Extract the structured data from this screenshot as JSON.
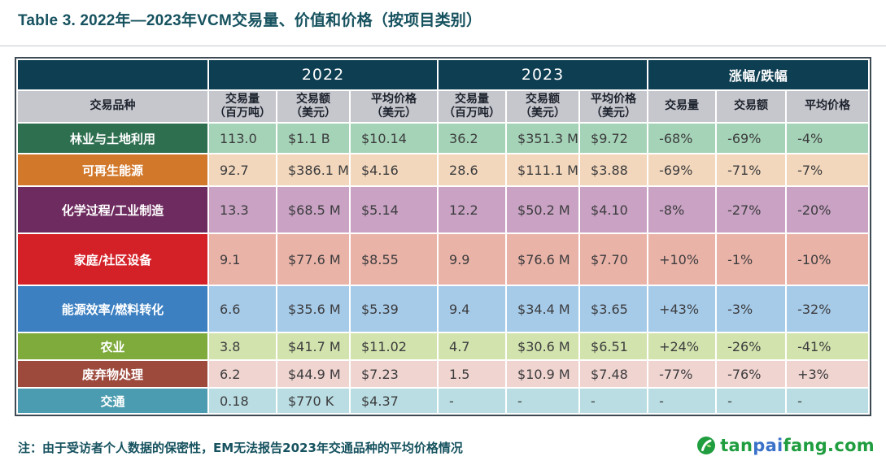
{
  "chart_data": {
    "type": "table",
    "title": "Table 3. 2022年—2023年VCM交易量、价值和价格（按项目类别）",
    "corner_label": "交易品种",
    "column_groups": [
      {
        "label": "2022"
      },
      {
        "label": "2023"
      },
      {
        "label": "涨幅/跌幅"
      }
    ],
    "columns": [
      {
        "key": "volume-2022",
        "label": "交易量",
        "unit": "（百万吨）"
      },
      {
        "key": "value-2022",
        "label": "交易额",
        "unit": "（美元）"
      },
      {
        "key": "price-2022",
        "label": "平均价格",
        "unit": "（美元）"
      },
      {
        "key": "volume-2023",
        "label": "交易量",
        "unit": "（百万吨）"
      },
      {
        "key": "value-2023",
        "label": "交易额",
        "unit": "（美元）"
      },
      {
        "key": "price-2023",
        "label": "平均价格",
        "unit": "（美元）"
      },
      {
        "key": "volume-change",
        "label": "交易量",
        "unit": ""
      },
      {
        "key": "value-change",
        "label": "交易额",
        "unit": ""
      },
      {
        "key": "price-change",
        "label": "平均价格",
        "unit": ""
      }
    ],
    "rows": [
      {
        "label": "林业与土地利用",
        "color": "#2e6f50",
        "tint": "#a5d3b7",
        "cells": [
          "113.0",
          "$1.1 B",
          "$10.14",
          "36.2",
          "$351.3 M",
          "$9.72",
          "-68%",
          "-69%",
          "-4%"
        ]
      },
      {
        "label": "可再生能源",
        "color": "#d2782b",
        "tint": "#f2d7bc",
        "cells": [
          "92.7",
          "$386.1 M",
          "$4.16",
          "28.6",
          "$111.1 M",
          "$3.88",
          "-69%",
          "-71%",
          "-7%"
        ]
      },
      {
        "label": "化学过程/工业制造",
        "color": "#6e2b5f",
        "tint": "#c9a2c4",
        "cells": [
          "13.3",
          "$68.5 M",
          "$5.14",
          "12.2",
          "$50.2 M",
          "$4.10",
          "-8%",
          "-27%",
          "-20%"
        ]
      },
      {
        "label": "家庭/社区设备",
        "color": "#d42127",
        "tint": "#eab3a8",
        "cells": [
          "9.1",
          "$77.6 M",
          "$8.55",
          "9.9",
          "$76.6 M",
          "$7.70",
          "+10%",
          "-1%",
          "-10%"
        ]
      },
      {
        "label": "能源效率/燃料转化",
        "color": "#3c80c2",
        "tint": "#a6cbe9",
        "cells": [
          "6.6",
          "$35.6 M",
          "$5.39",
          "9.4",
          "$34.4 M",
          "$3.65",
          "+43%",
          "-3%",
          "-32%"
        ]
      },
      {
        "label": "农业",
        "color": "#7fab3d",
        "tint": "#d2e3ad",
        "cells": [
          "3.8",
          "$41.7 M",
          "$11.02",
          "4.7",
          "$30.6 M",
          "$6.51",
          "+24%",
          "-26%",
          "-41%"
        ]
      },
      {
        "label": "废弃物处理",
        "color": "#9d4a3d",
        "tint": "#efd4d0",
        "cells": [
          "6.2",
          "$44.9 M",
          "$7.23",
          "1.5",
          "$10.9 M",
          "$7.48",
          "-77%",
          "-76%",
          "+3%"
        ]
      },
      {
        "label": "交通",
        "color": "#4b9cb0",
        "tint": "#b9dde2",
        "cells": [
          "0.18",
          "$770 K",
          "$4.37",
          "-",
          "-",
          "-",
          "-",
          "-",
          "-"
        ]
      }
    ],
    "note": "注：由于受访者个人数据的保密性，EM无法报告2023年交通品种的平均价格情况",
    "colors": {
      "header_bg": "#0e3e52",
      "subheader_bg": "#c6c6cd",
      "title_color": "#16525f"
    }
  },
  "footer": {
    "logo": {
      "icon": "tanpaifang-leaf-circle-icon",
      "parts": [
        {
          "text": "tan",
          "color": "#1f9d3f"
        },
        {
          "text": "pai",
          "color": "#3a71c9"
        },
        {
          "text": "fang.com",
          "color": "#1f9d3f"
        }
      ]
    }
  }
}
